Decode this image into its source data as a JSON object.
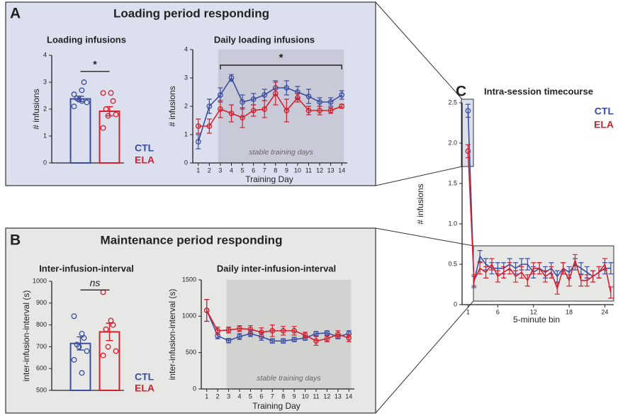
{
  "panels": [
    {
      "letter": "A",
      "title": "Loading period responding"
    },
    {
      "letter": "B",
      "title": "Maintenance period responding"
    },
    {
      "letter": "C"
    }
  ],
  "chart_data": [
    {
      "type": "bar",
      "title": "Loading infusions",
      "y_label": "# infusions",
      "categories": [
        "CTL",
        "ELA"
      ],
      "colors": [
        "#3a4ea0",
        "#d3202e"
      ],
      "values": [
        2.38,
        1.92
      ],
      "errors": [
        0.1,
        0.17
      ],
      "points": [
        [
          2.55,
          2.7,
          3.0,
          2.4,
          2.35,
          2.25,
          2.1,
          2.3
        ],
        [
          2.6,
          2.6,
          2.3,
          2.0,
          1.75,
          1.8,
          1.3
        ]
      ],
      "ylim": [
        0,
        4
      ],
      "yticks": [
        0,
        1,
        2,
        3,
        4
      ],
      "significance": {
        "label": "*",
        "y": 3.4
      }
    },
    {
      "type": "line",
      "title": "Daily loading infusions",
      "x_label": "Training Day",
      "y_label": "# infusions",
      "x": [
        1,
        2,
        3,
        4,
        5,
        6,
        7,
        8,
        9,
        10,
        11,
        12,
        13,
        14
      ],
      "xlim": [
        0.5,
        14.5
      ],
      "xticks": [
        1,
        2,
        3,
        4,
        5,
        6,
        7,
        8,
        9,
        10,
        11,
        12,
        13,
        14
      ],
      "ylim": [
        0,
        4
      ],
      "yticks": [
        0,
        1,
        2,
        3,
        4
      ],
      "shade": {
        "x": [
          2.8,
          14.2
        ],
        "label": "stable training days"
      },
      "significance": {
        "label": "*",
        "x": [
          3,
          14
        ],
        "y": 3.45
      },
      "series": [
        {
          "color": "#3a4ea0",
          "values": [
            0.75,
            2.0,
            2.4,
            3.0,
            2.15,
            2.25,
            2.4,
            2.65,
            2.65,
            2.5,
            2.35,
            2.15,
            2.15,
            2.4
          ],
          "errors": [
            0.25,
            0.25,
            0.25,
            0.12,
            0.25,
            0.2,
            0.2,
            0.25,
            0.25,
            0.2,
            0.25,
            0.15,
            0.15,
            0.15
          ]
        },
        {
          "color": "#d3202e",
          "values": [
            1.3,
            1.3,
            1.9,
            1.75,
            1.6,
            1.85,
            1.9,
            2.45,
            1.85,
            2.3,
            1.85,
            1.85,
            1.85,
            2.0
          ],
          "errors": [
            0.25,
            0.25,
            0.3,
            0.3,
            0.35,
            0.2,
            0.3,
            0.4,
            0.4,
            0.15,
            0.15,
            0.15,
            0.1,
            0.07
          ]
        }
      ]
    },
    {
      "type": "bar",
      "title": "Inter-infusion-interval",
      "y_label": "inter-infusion-interval (s)",
      "categories": [
        "CTL",
        "ELA"
      ],
      "colors": [
        "#3a4ea0",
        "#d3202e"
      ],
      "values": [
        715,
        768
      ],
      "errors": [
        30,
        40
      ],
      "points": [
        [
          840,
          760,
          740,
          710,
          700,
          680,
          640,
          580
        ],
        [
          950,
          820,
          800,
          780,
          700,
          680,
          660
        ]
      ],
      "ylim": [
        500,
        1000
      ],
      "yticks": [
        500,
        600,
        700,
        800,
        900,
        1000
      ],
      "significance": {
        "label": "ns",
        "y": 960
      }
    },
    {
      "type": "line",
      "title": "Daily inter-infusion-interval",
      "x_label": "Training Day",
      "y_label": "inter-infusion-interval (s)",
      "x": [
        1,
        2,
        3,
        4,
        5,
        6,
        7,
        8,
        9,
        10,
        11,
        12,
        13,
        14
      ],
      "xlim": [
        0.5,
        14.5
      ],
      "xticks": [
        1,
        2,
        3,
        4,
        5,
        6,
        7,
        8,
        9,
        10,
        11,
        12,
        13,
        14
      ],
      "ylim": [
        0,
        1500
      ],
      "yticks": [
        0,
        500,
        1000,
        1500
      ],
      "shade": {
        "x": [
          2.8,
          14.2
        ],
        "label": "stable training days"
      },
      "series": [
        {
          "color": "#3a4ea0",
          "values": [
            1080,
            730,
            665,
            720,
            760,
            720,
            660,
            660,
            680,
            700,
            760,
            770,
            720,
            760
          ],
          "errors": [
            150,
            40,
            30,
            40,
            40,
            50,
            30,
            30,
            30,
            30,
            30,
            30,
            30,
            40
          ]
        },
        {
          "color": "#d3202e",
          "values": [
            1080,
            800,
            810,
            830,
            820,
            780,
            800,
            800,
            800,
            740,
            660,
            690,
            750,
            700
          ],
          "errors": [
            150,
            50,
            40,
            40,
            50,
            60,
            80,
            60,
            60,
            40,
            60,
            40,
            50,
            50
          ]
        }
      ]
    },
    {
      "type": "line",
      "title": "Intra-session timecourse",
      "x_label": "5-minute bin",
      "y_label": "# infusions",
      "x": [
        1,
        2,
        3,
        4,
        5,
        6,
        7,
        8,
        9,
        10,
        11,
        12,
        13,
        14,
        15,
        16,
        17,
        18,
        19,
        20,
        21,
        22,
        23,
        24,
        25
      ],
      "xlim": [
        0,
        25.5
      ],
      "xticks": [
        1,
        6,
        12,
        18,
        24
      ],
      "ylim": [
        0,
        2.5
      ],
      "yticks": [
        0,
        0.5,
        {
          "value": 1,
          "label": "1.0"
        },
        1.5,
        {
          "value": 2,
          "label": "2.0"
        },
        2.5
      ],
      "series": [
        {
          "name": "CTL",
          "color": "#3a4ea0",
          "values": [
            2.4,
            0.28,
            0.6,
            0.5,
            0.45,
            0.45,
            0.45,
            0.5,
            0.45,
            0.5,
            0.5,
            0.4,
            0.45,
            0.4,
            0.45,
            0.35,
            0.45,
            0.4,
            0.5,
            0.45,
            0.4,
            0.35,
            0.4,
            0.45,
            0.45
          ],
          "errors": [
            0.08,
            0.07,
            0.07,
            0.07,
            0.07,
            0.07,
            0.07,
            0.07,
            0.07,
            0.07,
            0.07,
            0.07,
            0.07,
            0.07,
            0.07,
            0.07,
            0.07,
            0.07,
            0.07,
            0.07,
            0.07,
            0.07,
            0.07,
            0.07,
            0.07
          ]
        },
        {
          "name": "ELA",
          "color": "#d3202e",
          "values": [
            1.9,
            0.3,
            0.45,
            0.4,
            0.5,
            0.35,
            0.4,
            0.45,
            0.35,
            0.4,
            0.3,
            0.45,
            0.45,
            0.35,
            0.4,
            0.2,
            0.45,
            0.3,
            0.55,
            0.3,
            0.3,
            0.35,
            0.4,
            0.5,
            0.15
          ],
          "errors": [
            0.08,
            0.07,
            0.07,
            0.07,
            0.07,
            0.07,
            0.07,
            0.07,
            0.07,
            0.07,
            0.07,
            0.07,
            0.07,
            0.07,
            0.07,
            0.07,
            0.07,
            0.07,
            0.07,
            0.07,
            0.07,
            0.07,
            0.07,
            0.07,
            0.07
          ]
        }
      ]
    }
  ]
}
